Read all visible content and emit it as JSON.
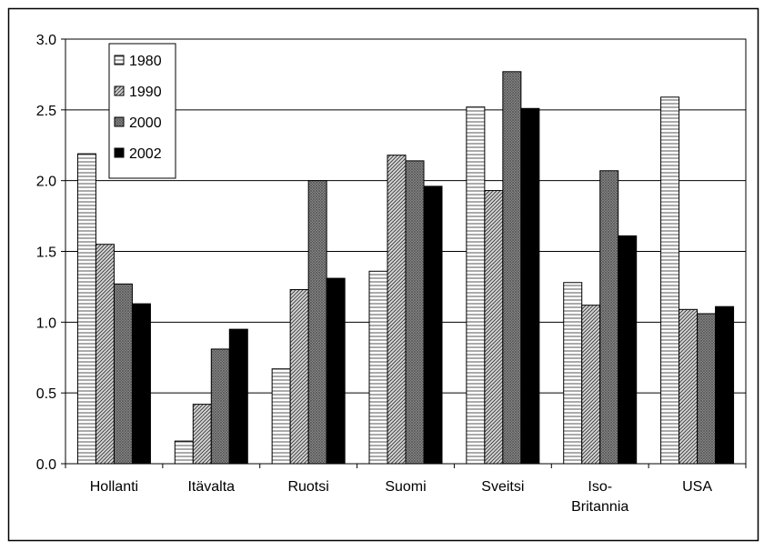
{
  "chart_data": {
    "type": "bar",
    "categories": [
      "Hollanti",
      "Itävalta",
      "Ruotsi",
      "Suomi",
      "Sveitsi",
      "Iso-Britannia",
      "USA"
    ],
    "category_label_lines": [
      [
        "Hollanti"
      ],
      [
        "Itävalta"
      ],
      [
        "Ruotsi"
      ],
      [
        "Suomi"
      ],
      [
        "Sveitsi"
      ],
      [
        "Iso-",
        "Britannia"
      ],
      [
        "USA"
      ]
    ],
    "series": [
      {
        "name": "1980",
        "values": [
          2.19,
          0.16,
          0.67,
          1.36,
          2.52,
          1.28,
          2.59
        ],
        "fill": "#e8e8e8",
        "pattern": "horizontal-lines"
      },
      {
        "name": "1990",
        "values": [
          1.55,
          0.42,
          1.23,
          2.18,
          1.93,
          1.12,
          1.09
        ],
        "fill": "#bdbdbd",
        "pattern": "diagonal-lines"
      },
      {
        "name": "2000",
        "values": [
          1.27,
          0.81,
          2.0,
          2.14,
          2.77,
          2.07,
          1.06
        ],
        "fill": "#a6a6a6",
        "pattern": "dense-crosshatch"
      },
      {
        "name": "2002",
        "values": [
          1.13,
          0.95,
          1.31,
          1.96,
          2.51,
          1.61,
          1.11
        ],
        "fill": "#000000",
        "pattern": "solid"
      }
    ],
    "ylim": [
      0,
      3.0
    ],
    "yticks": [
      "0.0",
      "0.5",
      "1.0",
      "1.5",
      "2.0",
      "2.5",
      "3.0"
    ],
    "title": "",
    "xlabel": "",
    "ylabel": "",
    "grid": true,
    "legend_position": "top-left"
  }
}
